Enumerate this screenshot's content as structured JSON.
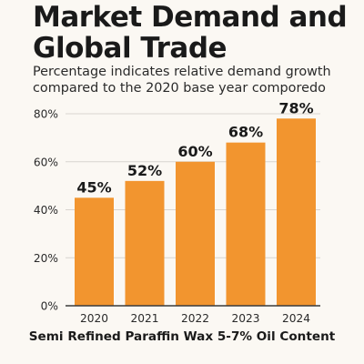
{
  "header": {
    "title_line1": "Market Demand and",
    "title_line2": "Global Trade",
    "subtitle_line1": "Percentage indicates relative demand growth",
    "subtitle_line2": "compared to the 2020 base year comporedo"
  },
  "footer": {
    "caption": "Semi Refined Paraffin Wax 5-7% Oil Content"
  },
  "colors": {
    "bar": "#f2952f",
    "grid": "#d8d4cf",
    "axis": "#3a3a3a"
  },
  "chart_data": {
    "type": "bar",
    "categories": [
      "2020",
      "2021",
      "2022",
      "2023",
      "2024"
    ],
    "values": [
      45,
      52,
      60,
      68,
      78
    ],
    "data_labels": [
      "45%",
      "52%",
      "60%",
      "68%",
      "78%"
    ],
    "yticks": [
      0,
      20,
      40,
      60,
      80
    ],
    "ytick_labels": [
      "0%",
      "20%",
      "40%",
      "60%",
      "80%"
    ],
    "ylim": [
      0,
      80
    ],
    "grid": true,
    "title": "Market Demand and Global Trade",
    "xlabel": "Semi Refined Paraffin Wax 5-7% Oil Content",
    "ylabel": ""
  }
}
